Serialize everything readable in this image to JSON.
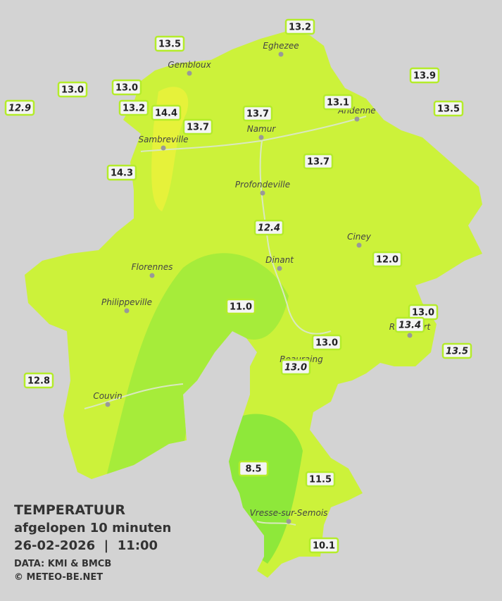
{
  "title": {
    "heading": "TEMPERATUUR",
    "subheading": "afgelopen 10 minuten",
    "datetime": "26-02-2026  |  11:00",
    "source": "DATA: KMI & BMCB",
    "copyright": "© METEO-BE.NET"
  },
  "cities": [
    "Eghezee",
    "Gembloux",
    "Andenne",
    "Namur",
    "Sambreville",
    "Profondeville",
    "Ciney",
    "Dinant",
    "Florennes",
    "Philippeville",
    "Rochefort",
    "Beauraing",
    "Couvin",
    "Vresse-sur-Semois"
  ],
  "stations": [
    {
      "label": "13.2"
    },
    {
      "label": "13.5"
    },
    {
      "label": "13.9"
    },
    {
      "label": "13.0"
    },
    {
      "label": "13.0"
    },
    {
      "label": "12.9",
      "italic": true
    },
    {
      "label": "13.2"
    },
    {
      "label": "14.4"
    },
    {
      "label": "13.1"
    },
    {
      "label": "13.5"
    },
    {
      "label": "13.7"
    },
    {
      "label": "13.7"
    },
    {
      "label": "14.3"
    },
    {
      "label": "13.7"
    },
    {
      "label": "12.4",
      "italic": true
    },
    {
      "label": "12.0"
    },
    {
      "label": "11.0"
    },
    {
      "label": "13.0"
    },
    {
      "label": "13.4",
      "italic": true
    },
    {
      "label": "13.5",
      "italic": true
    },
    {
      "label": "13.0"
    },
    {
      "label": "13.0",
      "italic": true
    },
    {
      "label": "12.8"
    },
    {
      "label": "8.5"
    },
    {
      "label": "11.5"
    },
    {
      "label": "10.1"
    }
  ]
}
